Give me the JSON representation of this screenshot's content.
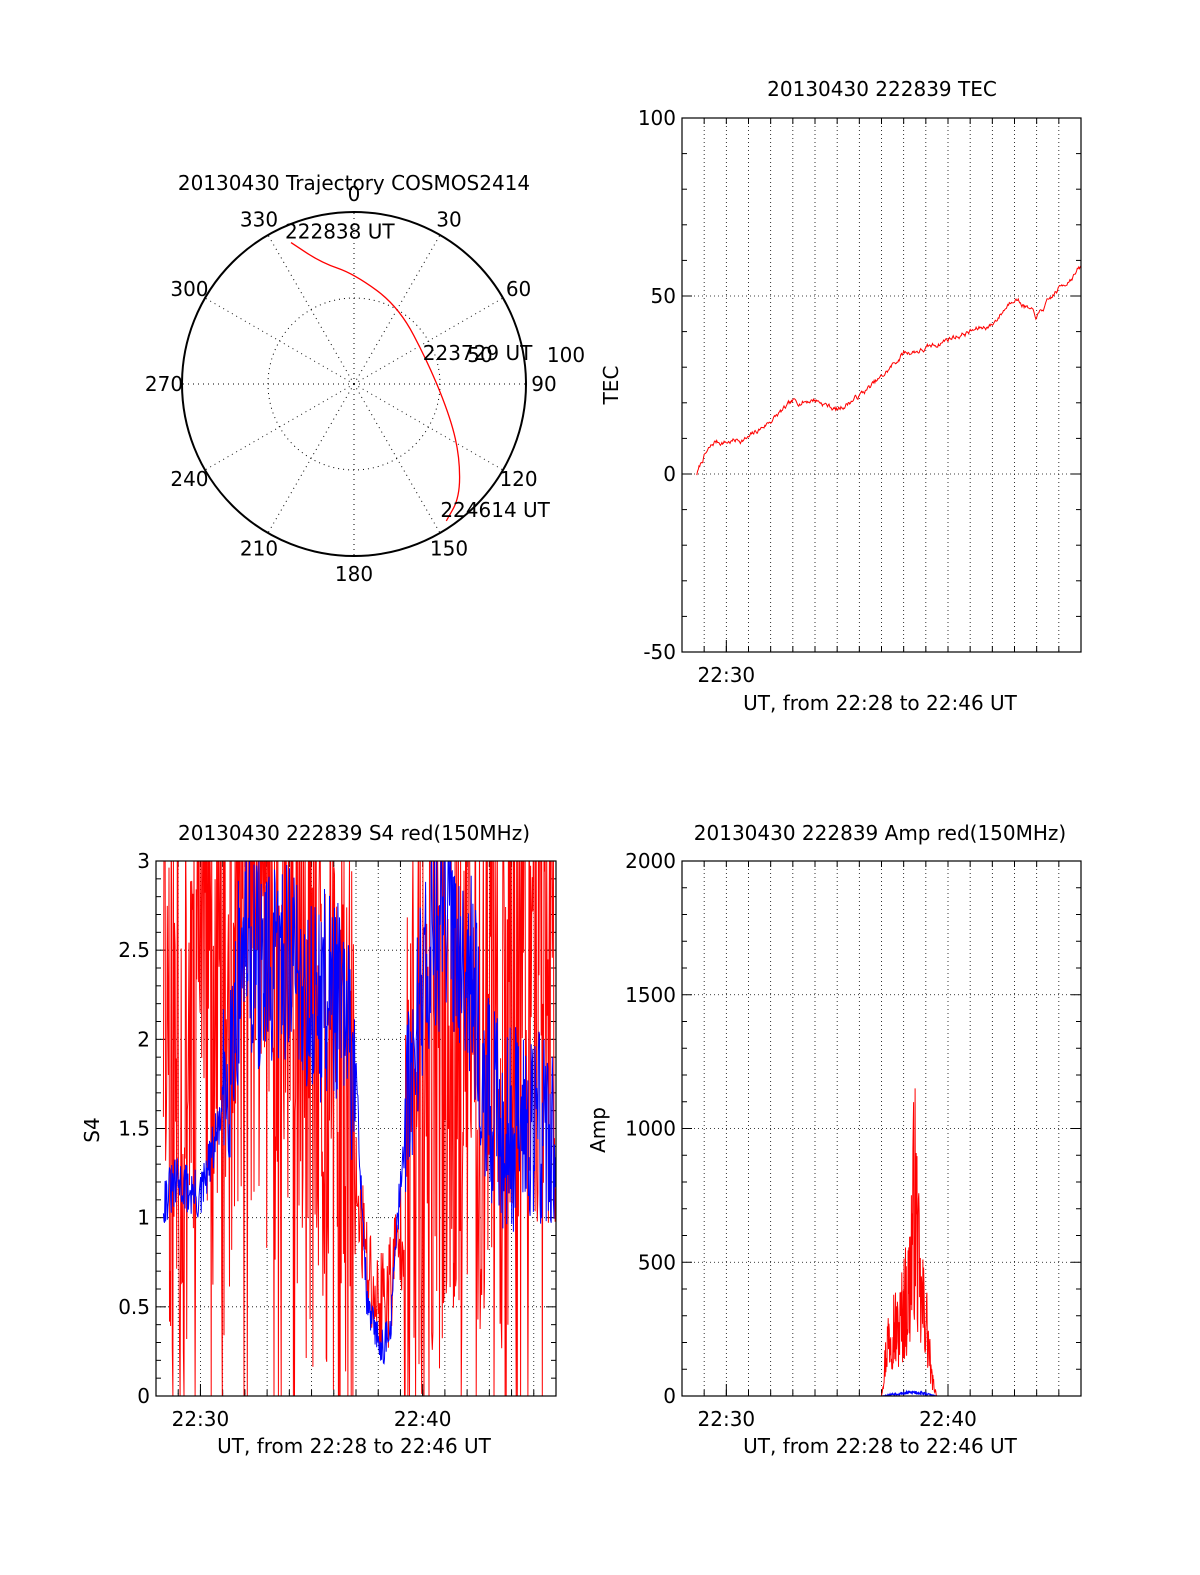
{
  "colors": {
    "primary": "#ff0000",
    "secondary": "#0000ff",
    "axis": "#000000",
    "background": "#ffffff"
  },
  "chart_data": [
    {
      "type": "polar",
      "title": "20130430 Trajectory COSMOS2414",
      "angle_labels": [
        "0",
        "30",
        "60",
        "90",
        "120",
        "150",
        "180",
        "210",
        "240",
        "270",
        "300",
        "330"
      ],
      "radius_labels": [
        "50",
        "100"
      ],
      "rlim": [
        0,
        100
      ],
      "grid": true,
      "series": [
        {
          "color": "#ff0000",
          "points": [
            {
              "az": 336,
              "r": 90
            },
            {
              "az": 345,
              "r": 73
            },
            {
              "az": 0,
              "r": 64
            },
            {
              "az": 30,
              "r": 52
            },
            {
              "az": 75,
              "r": 45
            },
            {
              "az": 110,
              "r": 60
            },
            {
              "az": 125,
              "r": 75
            },
            {
              "az": 137,
              "r": 90
            },
            {
              "az": 146,
              "r": 96
            }
          ]
        }
      ],
      "annotations": [
        {
          "text": "222838 UT",
          "az": 336,
          "r": 90
        },
        {
          "text": "223729 UT",
          "az": 75,
          "r": 45
        },
        {
          "text": "224614 UT",
          "az": 146,
          "r": 96
        }
      ]
    },
    {
      "type": "line",
      "title": "20130430 222839 TEC",
      "xlabel": "UT, from 22:28 to 22:46 UT",
      "ylabel": "TEC",
      "xlim": [
        "22:28",
        "22:46"
      ],
      "ylim": [
        -50,
        100
      ],
      "yticks": [
        "-50",
        "0",
        "50",
        "100"
      ],
      "xticks": [
        "22:30"
      ],
      "grid": true,
      "series": [
        {
          "color": "#ff0000",
          "x": [
            "22:28:40",
            "22:29:00",
            "22:29:30",
            "22:30:00",
            "22:31:00",
            "22:32:00",
            "22:33:00",
            "22:34:00",
            "22:35:00",
            "22:36:00",
            "22:37:00",
            "22:38:00",
            "22:39:00",
            "22:40:00",
            "22:41:00",
            "22:42:00",
            "22:43:00",
            "22:44:00",
            "22:45:00",
            "22:46:00"
          ],
          "y": [
            0,
            5,
            9,
            9,
            10,
            15,
            20,
            21,
            18,
            22,
            27,
            34,
            35,
            38,
            40,
            42,
            50,
            44,
            52,
            58
          ]
        }
      ]
    },
    {
      "type": "line",
      "title": "20130430 222839 S4 red(150MHz)",
      "xlabel": "UT, from 22:28 to 22:46 UT",
      "ylabel": "S4",
      "xlim": [
        "22:28",
        "22:46"
      ],
      "ylim": [
        0,
        3
      ],
      "yticks": [
        "0",
        "0.5",
        "1",
        "1.5",
        "2",
        "2.5",
        "3"
      ],
      "xticks": [
        "22:30",
        "22:40"
      ],
      "grid": true,
      "series": [
        {
          "color": "#ff0000",
          "x": [
            "22:28:20",
            "22:29:00",
            "22:30:00",
            "22:31:00",
            "22:32:00",
            "22:33:00",
            "22:34:00",
            "22:35:00",
            "22:36:00",
            "22:37:00",
            "22:37:30",
            "22:38:00",
            "22:38:30",
            "22:39:00",
            "22:40:00",
            "22:41:00",
            "22:42:00",
            "22:43:00",
            "22:44:00",
            "22:45:00",
            "22:46:00"
          ],
          "y": [
            2.5,
            1.5,
            2.8,
            2.0,
            3.0,
            2.6,
            2.4,
            1.8,
            1.4,
            1.2,
            0.7,
            0.5,
            0.6,
            0.9,
            1.6,
            2.0,
            2.2,
            1.9,
            2.2,
            2.8,
            2.5
          ]
        },
        {
          "color": "#0000ff",
          "x": [
            "22:28:20",
            "22:29:00",
            "22:30:00",
            "22:31:00",
            "22:32:00",
            "22:33:00",
            "22:34:00",
            "22:35:00",
            "22:36:00",
            "22:37:00",
            "22:37:30",
            "22:38:00",
            "22:38:30",
            "22:39:00",
            "22:40:00",
            "22:41:00",
            "22:42:00",
            "22:43:00",
            "22:44:00",
            "22:45:00",
            "22:46:00"
          ],
          "y": [
            1.1,
            1.2,
            1.1,
            1.6,
            2.6,
            2.3,
            2.5,
            2.2,
            2.3,
            1.8,
            0.5,
            0.3,
            0.3,
            1.2,
            2.4,
            2.7,
            2.5,
            1.6,
            1.5,
            1.6,
            1.4
          ]
        }
      ]
    },
    {
      "type": "line",
      "title": "20130430 222839 Amp red(150MHz)",
      "xlabel": "UT, from 22:28 to 22:46 UT",
      "ylabel": "Amp",
      "xlim": [
        "22:28",
        "22:46"
      ],
      "ylim": [
        0,
        2000
      ],
      "yticks": [
        "0",
        "500",
        "1000",
        "1500",
        "2000"
      ],
      "xticks": [
        "22:30",
        "22:40"
      ],
      "grid": true,
      "series": [
        {
          "color": "#ff0000",
          "x": [
            "22:28:40",
            "22:36:00",
            "22:37:00",
            "22:37:15",
            "22:37:30",
            "22:37:45",
            "22:38:00",
            "22:38:15",
            "22:38:30",
            "22:38:45",
            "22:39:00",
            "22:39:15",
            "22:39:30",
            "22:40:00",
            "22:46:00"
          ],
          "y": [
            0,
            0,
            0,
            280,
            400,
            330,
            470,
            560,
            1100,
            500,
            430,
            100,
            0,
            0,
            0
          ]
        },
        {
          "color": "#0000ff",
          "x": [
            "22:28:40",
            "22:37:00",
            "22:37:30",
            "22:38:00",
            "22:38:30",
            "22:39:00",
            "22:39:30",
            "22:46:00"
          ],
          "y": [
            0,
            0,
            10,
            15,
            20,
            12,
            0,
            0
          ]
        }
      ]
    }
  ]
}
